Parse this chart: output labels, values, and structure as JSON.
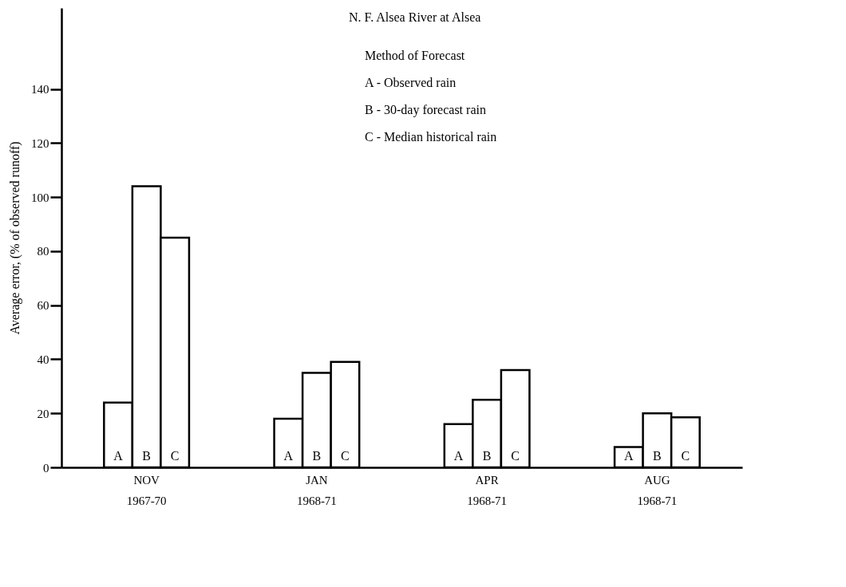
{
  "chart_data": {
    "type": "bar",
    "ylabel": "Average error, (% of observed runoff)",
    "categories": [
      "NOV\n1967-70",
      "JAN\n1968-71",
      "APR\n1968-71",
      "AUG\n1968-71"
    ],
    "series": [
      {
        "name": "A",
        "color": "#ffffff",
        "values": [
          24,
          18,
          16,
          7.5
        ]
      },
      {
        "name": "B",
        "color": "#ffffff",
        "values": [
          104,
          35,
          25,
          20
        ]
      },
      {
        "name": "C",
        "color": "#ffffff",
        "values": [
          85,
          39,
          36,
          18.5
        ]
      }
    ],
    "ylim": [
      0,
      170
    ],
    "yticks": [
      0,
      20,
      40,
      60,
      80,
      100,
      120,
      140
    ],
    "grid": false,
    "legend": false,
    "annotations": [
      "N. F.  Alsea River at Alsea",
      "Method of Forecast",
      "A  -  Observed rain",
      "B  -  30-day forecast rain",
      "C  -  Median historical rain"
    ]
  }
}
